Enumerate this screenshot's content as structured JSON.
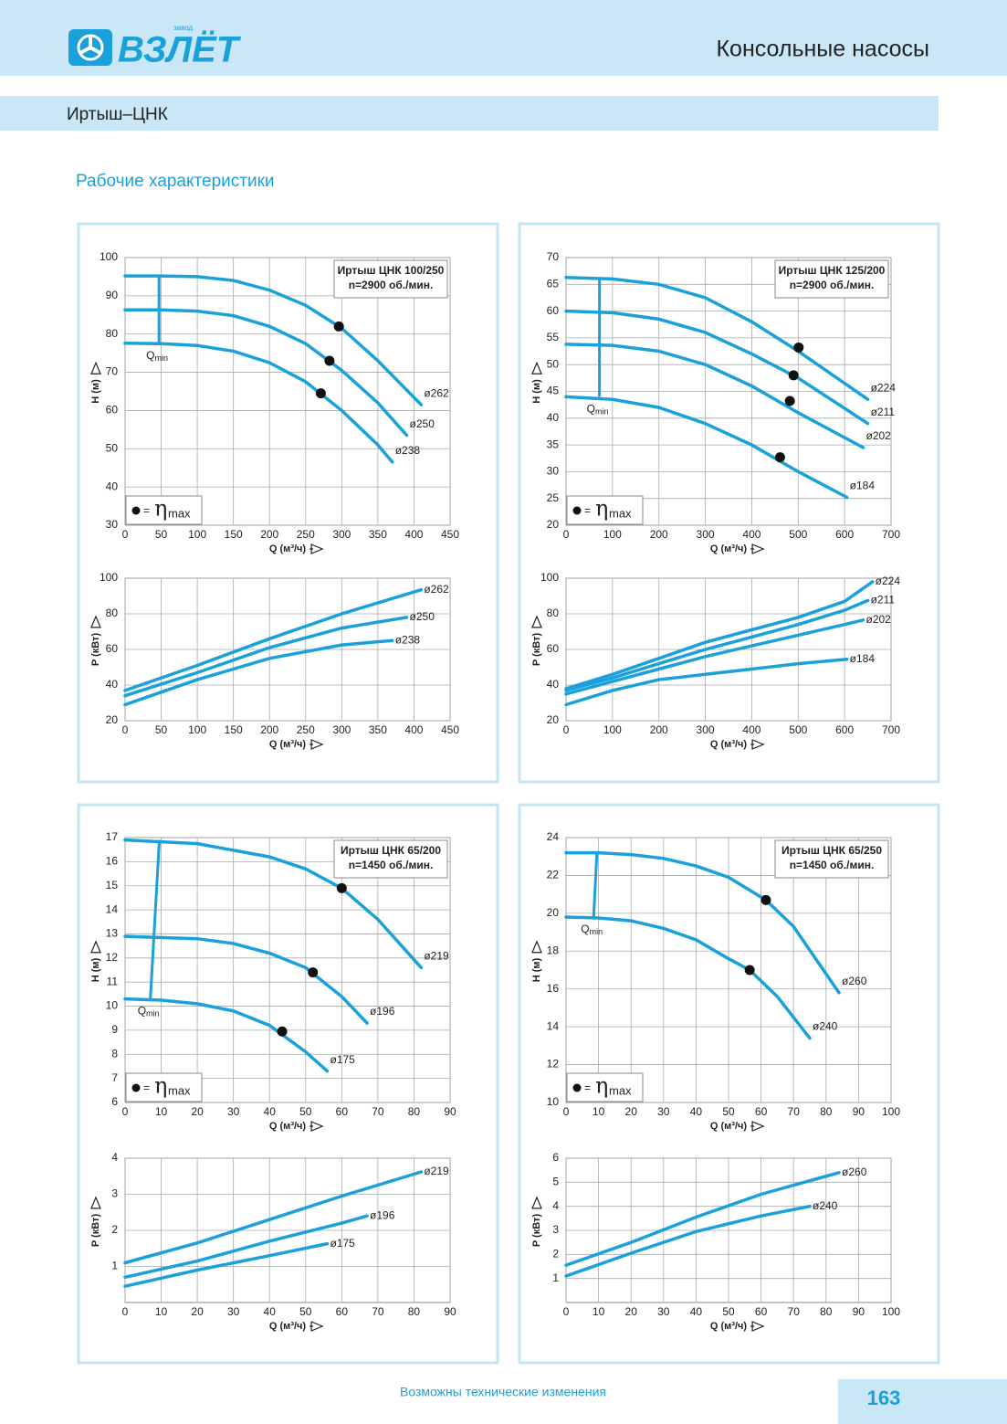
{
  "header": {
    "brand": "ВЗЛЁТ",
    "brand_prefix": "завод",
    "title": "Консольные насосы"
  },
  "subheader": "Иртыш–ЦНК",
  "section_title": "Рабочие характеристики",
  "footer": {
    "note": "Возможны технические изменения",
    "page": "163"
  },
  "chart_data": [
    {
      "type": "line",
      "box_title": [
        "Иртыш ЦНК 100/250",
        "n=2900 об./мин."
      ],
      "xlabel": "Q (м³/ч)",
      "ylabel": "H (м)",
      "xlim": [
        0,
        450
      ],
      "ylim": [
        30,
        100
      ],
      "xticks": [
        0,
        50,
        100,
        150,
        200,
        250,
        300,
        350,
        400,
        450
      ],
      "yticks": [
        30,
        40,
        50,
        60,
        70,
        80,
        90,
        100
      ],
      "grid": true,
      "color": "#1ba1d9",
      "eta_legend": {
        "eq": "=",
        "symbol": "η",
        "sub": "max"
      },
      "qmin": {
        "label": "Q",
        "sub": "min",
        "x": [
          47,
          47
        ],
        "y": [
          77.5,
          95.2
        ]
      },
      "series": [
        {
          "name": "ø262",
          "x": [
            0,
            50,
            100,
            150,
            200,
            250,
            300,
            350,
            410
          ],
          "values": [
            95.2,
            95.2,
            95,
            94,
            91.5,
            87.5,
            81.5,
            73,
            61.5
          ],
          "bep": [
            296,
            82
          ]
        },
        {
          "name": "ø250",
          "x": [
            0,
            50,
            100,
            150,
            200,
            250,
            300,
            350,
            390
          ],
          "values": [
            86.3,
            86.3,
            86,
            84.8,
            82,
            77.5,
            70.5,
            62,
            53.5
          ],
          "bep": [
            283,
            73
          ]
        },
        {
          "name": "ø238",
          "x": [
            0,
            50,
            100,
            150,
            200,
            250,
            300,
            350,
            370
          ],
          "values": [
            77.6,
            77.5,
            77,
            75.5,
            72.5,
            67.5,
            60,
            51,
            46.5
          ],
          "bep": [
            271,
            64.5
          ]
        }
      ]
    },
    {
      "type": "line",
      "xlabel": "Q (м³/ч)",
      "ylabel": "P (кВт)",
      "xlim": [
        0,
        450
      ],
      "ylim": [
        20,
        100
      ],
      "xticks": [
        0,
        50,
        100,
        150,
        200,
        250,
        300,
        350,
        400,
        450
      ],
      "yticks": [
        20,
        40,
        60,
        80,
        100
      ],
      "grid": true,
      "color": "#1ba1d9",
      "series": [
        {
          "name": "ø262",
          "x": [
            0,
            100,
            200,
            300,
            410
          ],
          "values": [
            37,
            51,
            66,
            80,
            93.5
          ]
        },
        {
          "name": "ø250",
          "x": [
            0,
            100,
            200,
            300,
            390
          ],
          "values": [
            34,
            47,
            61,
            72,
            78
          ]
        },
        {
          "name": "ø238",
          "x": [
            0,
            100,
            200,
            300,
            370
          ],
          "values": [
            29,
            43,
            55,
            62.5,
            65
          ]
        }
      ]
    },
    {
      "type": "line",
      "box_title": [
        "Иртыш ЦНК 125/200",
        "n=2900 об./мин."
      ],
      "xlabel": "Q (м³/ч)",
      "ylabel": "H (м)",
      "xlim": [
        0,
        700
      ],
      "ylim": [
        20,
        70
      ],
      "xticks": [
        0,
        100,
        200,
        300,
        400,
        500,
        600,
        700
      ],
      "yticks": [
        20,
        25,
        30,
        35,
        40,
        45,
        50,
        55,
        60,
        65,
        70
      ],
      "grid": true,
      "color": "#1ba1d9",
      "eta_legend": {
        "eq": "=",
        "symbol": "η",
        "sub": "max"
      },
      "qmin": {
        "label": "Q",
        "sub": "min",
        "x": [
          72,
          72
        ],
        "y": [
          44,
          66.3
        ]
      },
      "series": [
        {
          "name": "ø224",
          "x": [
            0,
            100,
            200,
            300,
            400,
            500,
            650
          ],
          "values": [
            66.3,
            66,
            65,
            62.5,
            58,
            52.5,
            43.5
          ],
          "bep": [
            501,
            53.2
          ]
        },
        {
          "name": "ø211",
          "x": [
            0,
            100,
            200,
            300,
            400,
            500,
            650
          ],
          "values": [
            60,
            59.7,
            58.5,
            56,
            52,
            47.5,
            39
          ],
          "bep": [
            490,
            48
          ]
        },
        {
          "name": "ø202",
          "x": [
            0,
            100,
            200,
            300,
            400,
            500,
            640
          ],
          "values": [
            53.8,
            53.6,
            52.5,
            50,
            46,
            41,
            34.5
          ],
          "bep": [
            482,
            43.2
          ]
        },
        {
          "name": "ø184",
          "x": [
            0,
            100,
            200,
            300,
            400,
            500,
            605
          ],
          "values": [
            44,
            43.5,
            42,
            39,
            35,
            30,
            25.2
          ],
          "bep": [
            461,
            32.7
          ]
        }
      ]
    },
    {
      "type": "line",
      "xlabel": "Q (м³/ч)",
      "ylabel": "P (кВт)",
      "xlim": [
        0,
        700
      ],
      "ylim": [
        20,
        100
      ],
      "xticks": [
        0,
        100,
        200,
        300,
        400,
        500,
        600,
        700
      ],
      "yticks": [
        20,
        40,
        60,
        80,
        100
      ],
      "grid": true,
      "color": "#1ba1d9",
      "series": [
        {
          "name": "ø224",
          "x": [
            0,
            100,
            200,
            300,
            400,
            500,
            600,
            660
          ],
          "values": [
            38,
            46,
            55,
            64,
            71,
            78,
            87,
            98
          ]
        },
        {
          "name": "ø211",
          "x": [
            0,
            100,
            200,
            300,
            400,
            500,
            600,
            650
          ],
          "values": [
            37,
            44,
            52,
            60,
            67,
            74,
            82,
            87.5
          ]
        },
        {
          "name": "ø202",
          "x": [
            0,
            100,
            200,
            300,
            400,
            500,
            600,
            640
          ],
          "values": [
            35,
            42,
            49,
            56,
            62,
            68,
            74,
            76.5
          ]
        },
        {
          "name": "ø184",
          "x": [
            0,
            100,
            200,
            300,
            400,
            500,
            605
          ],
          "values": [
            29,
            37,
            43,
            46,
            49,
            52,
            54.5
          ]
        }
      ]
    },
    {
      "type": "line",
      "box_title": [
        "Иртыш ЦНК 65/200",
        "n=1450 об./мин."
      ],
      "xlabel": "Q (м³/ч)",
      "ylabel": "H (м)",
      "xlim": [
        0,
        90
      ],
      "ylim": [
        6,
        17
      ],
      "xticks": [
        0,
        10,
        20,
        30,
        40,
        50,
        60,
        70,
        80,
        90
      ],
      "yticks": [
        6,
        7,
        8,
        9,
        10,
        11,
        12,
        13,
        14,
        15,
        16,
        17
      ],
      "grid": true,
      "color": "#1ba1d9",
      "eta_legend": {
        "eq": "=",
        "symbol": "η",
        "sub": "max"
      },
      "qmin": {
        "label": "Q",
        "sub": "min",
        "x": [
          7,
          9.5
        ],
        "y": [
          10.3,
          16.9
        ]
      },
      "series": [
        {
          "name": "ø219",
          "x": [
            0,
            20,
            40,
            50,
            60,
            70,
            82
          ],
          "values": [
            16.9,
            16.75,
            16.2,
            15.7,
            14.9,
            13.6,
            11.6
          ],
          "bep": [
            60,
            14.9
          ]
        },
        {
          "name": "ø196",
          "x": [
            0,
            20,
            30,
            40,
            50,
            60,
            67
          ],
          "values": [
            12.9,
            12.8,
            12.6,
            12.2,
            11.6,
            10.4,
            9.3
          ],
          "bep": [
            52,
            11.4
          ]
        },
        {
          "name": "ø175",
          "x": [
            0,
            10,
            20,
            30,
            40,
            50,
            56
          ],
          "values": [
            10.3,
            10.25,
            10.1,
            9.8,
            9.2,
            8.1,
            7.3
          ],
          "bep": [
            43.5,
            8.95
          ]
        }
      ]
    },
    {
      "type": "line",
      "xlabel": "Q (м³/ч)",
      "ylabel": "P (кВт)",
      "xlim": [
        0,
        90
      ],
      "ylim": [
        0,
        4
      ],
      "xticks": [
        0,
        10,
        20,
        30,
        40,
        50,
        60,
        70,
        80,
        90
      ],
      "yticks": [
        1,
        2,
        3,
        4
      ],
      "grid": true,
      "color": "#1ba1d9",
      "series": [
        {
          "name": "ø219",
          "x": [
            0,
            20,
            40,
            60,
            82
          ],
          "values": [
            1.1,
            1.65,
            2.3,
            2.95,
            3.62
          ]
        },
        {
          "name": "ø196",
          "x": [
            0,
            20,
            40,
            60,
            67
          ],
          "values": [
            0.7,
            1.15,
            1.7,
            2.2,
            2.4
          ]
        },
        {
          "name": "ø175",
          "x": [
            0,
            20,
            40,
            56
          ],
          "values": [
            0.45,
            0.9,
            1.3,
            1.63
          ]
        }
      ]
    },
    {
      "type": "line",
      "box_title": [
        "Иртыш ЦНК 65/250",
        "n=1450 об./мин."
      ],
      "xlabel": "Q (м³/ч)",
      "ylabel": "H (м)",
      "xlim": [
        0,
        100
      ],
      "ylim": [
        10,
        24
      ],
      "xticks": [
        0,
        10,
        20,
        30,
        40,
        50,
        60,
        70,
        80,
        90,
        100
      ],
      "yticks": [
        10,
        12,
        14,
        16,
        18,
        20,
        22,
        24
      ],
      "grid": true,
      "color": "#1ba1d9",
      "eta_legend": {
        "eq": "=",
        "symbol": "η",
        "sub": "max"
      },
      "qmin": {
        "label": "Q",
        "sub": "min",
        "x": [
          8.5,
          9.5
        ],
        "y": [
          19.8,
          23.2
        ]
      },
      "series": [
        {
          "name": "ø260",
          "x": [
            0,
            10,
            20,
            30,
            40,
            50,
            61.5,
            70,
            84
          ],
          "values": [
            23.2,
            23.2,
            23.1,
            22.9,
            22.5,
            21.9,
            20.7,
            19.3,
            15.8
          ],
          "bep": [
            61.5,
            20.7
          ]
        },
        {
          "name": "ø240",
          "x": [
            0,
            10,
            20,
            30,
            40,
            50,
            56.5,
            65,
            75
          ],
          "values": [
            19.8,
            19.75,
            19.6,
            19.2,
            18.6,
            17.6,
            17,
            15.6,
            13.4
          ],
          "bep": [
            56.5,
            17
          ]
        }
      ]
    },
    {
      "type": "line",
      "xlabel": "Q (м³/ч)",
      "ylabel": "P (кВт)",
      "xlim": [
        0,
        100
      ],
      "ylim": [
        0,
        6
      ],
      "xticks": [
        0,
        10,
        20,
        30,
        40,
        50,
        60,
        70,
        80,
        90,
        100
      ],
      "yticks": [
        1,
        2,
        3,
        4,
        5,
        6
      ],
      "grid": true,
      "color": "#1ba1d9",
      "series": [
        {
          "name": "ø260",
          "x": [
            0,
            20,
            40,
            60,
            84
          ],
          "values": [
            1.55,
            2.5,
            3.55,
            4.5,
            5.4
          ]
        },
        {
          "name": "ø240",
          "x": [
            0,
            20,
            40,
            60,
            75
          ],
          "values": [
            1.1,
            2.05,
            2.95,
            3.6,
            4.0
          ]
        }
      ]
    }
  ]
}
